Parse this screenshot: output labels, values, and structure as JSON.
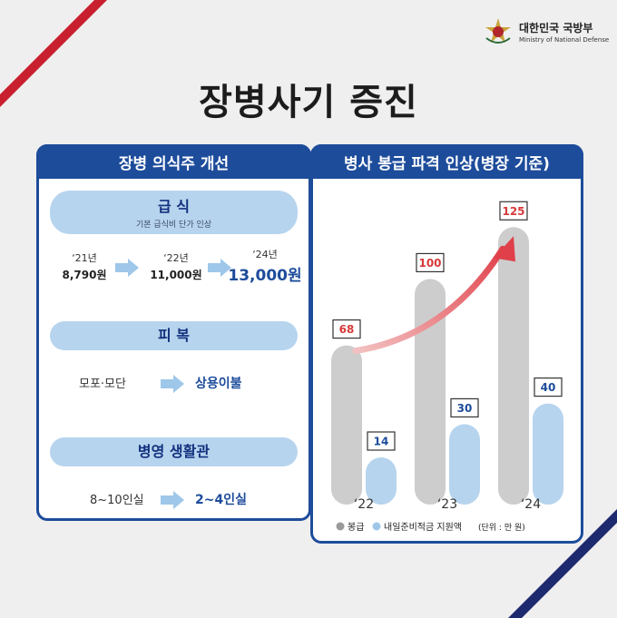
{
  "header": {
    "org_ko": "대한민국 국방부",
    "org_en": "Ministry of National Defense",
    "title": "장병사기 증진"
  },
  "left_panel": {
    "heading": "장병 의식주 개선",
    "meal": {
      "title": "급 식",
      "subtitle": "기본 급식비 단가 인상",
      "steps": [
        {
          "year": "‘21년",
          "amount": "8,790원"
        },
        {
          "year": "‘22년",
          "amount": "11,000원"
        },
        {
          "year": "‘24년",
          "amount": "13,000원"
        }
      ]
    },
    "clothing": {
      "title": "피 복",
      "from": "모포·모단",
      "to": "상용이불"
    },
    "barracks": {
      "title": "병영 생활관",
      "from": "8~10인실",
      "to": "2~4인실"
    }
  },
  "chart_data": {
    "type": "bar",
    "title": "병사 봉급 파격 인상(병장 기준)",
    "categories": [
      "‘22",
      "‘23",
      "‘24"
    ],
    "series": [
      {
        "name": "봉급",
        "values": [
          68,
          100,
          125
        ],
        "color": "#cdcdcd",
        "label_color": "#d63a3a"
      },
      {
        "name": "내일준비적금 지원액",
        "values": [
          14,
          30,
          40
        ],
        "color": "#b7d4ee",
        "label_color": "#1d4c9b"
      }
    ],
    "unit_note": "(단위 : 만 원)",
    "ylim": [
      0,
      140
    ],
    "annotation": "rising-arrow"
  },
  "colors": {
    "brand_blue": "#1d4c9b",
    "accent_red": "#c8202f",
    "navy": "#1d2a6e"
  }
}
